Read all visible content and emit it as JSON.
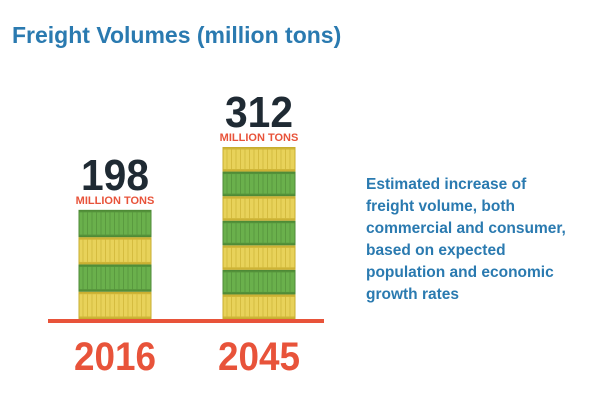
{
  "title": "Freight Volumes (million tons)",
  "description_lines": [
    "Estimated increase of",
    "freight volume, both",
    "commercial and consumer,",
    "based on expected",
    "population and economic",
    "growth rates"
  ],
  "colors": {
    "title": "#2a7ab0",
    "value_text": "#1f2a33",
    "unit_text": "#e8533a",
    "year_text": "#e8533a",
    "baseline": "#e8533a",
    "container_green": "#6ab04c",
    "container_green_dark": "#4e8a36",
    "container_yellow": "#e8d25a",
    "container_yellow_dark": "#c7ad2e"
  },
  "chart_data": {
    "type": "bar",
    "title": "Freight Volumes (million tons)",
    "categories": [
      "2016",
      "2045"
    ],
    "values": [
      198,
      312
    ],
    "value_labels": [
      "198",
      "312"
    ],
    "unit_label": "MILLION TONS",
    "ylim": [
      0,
      312
    ],
    "grid": false,
    "container_pattern": [
      "yellow",
      "green",
      "yellow",
      "green"
    ]
  }
}
